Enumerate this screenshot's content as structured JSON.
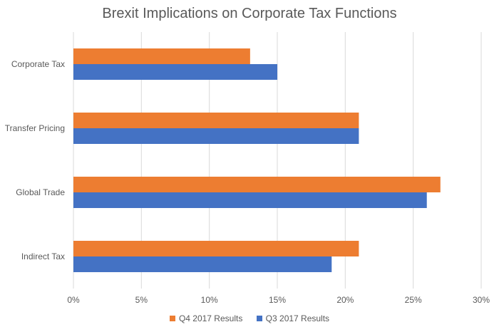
{
  "chart_data": {
    "type": "bar",
    "orientation": "horizontal",
    "title": "Brexit Implications on Corporate Tax Functions",
    "xlabel": "",
    "ylabel": "",
    "categories": [
      "Corporate Tax",
      "Transfer Pricing",
      "Global Trade",
      "Indirect Tax"
    ],
    "series": [
      {
        "name": "Q4 2017 Results",
        "values": [
          13,
          21,
          27,
          21
        ],
        "color": "#ED7D31"
      },
      {
        "name": "Q3 2017 Results",
        "values": [
          15,
          21,
          26,
          19
        ],
        "color": "#4472C4"
      }
    ],
    "xlim": [
      0,
      30
    ],
    "x_ticks": [
      0,
      5,
      10,
      15,
      20,
      25,
      30
    ],
    "x_tick_labels": [
      "0%",
      "5%",
      "10%",
      "15%",
      "20%",
      "25%",
      "30%"
    ],
    "grid": true,
    "legend_position": "bottom"
  }
}
